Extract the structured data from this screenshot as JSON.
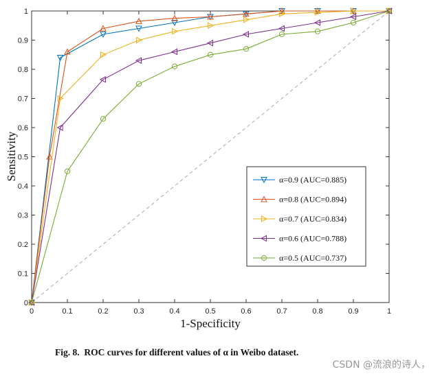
{
  "chart_data": {
    "type": "line",
    "title": "",
    "xlabel": "1-Specificity",
    "ylabel": "Sensitivity",
    "xlim": [
      0,
      1
    ],
    "ylim": [
      0,
      1
    ],
    "xticks": [
      "0",
      "0.1",
      "0.2",
      "0.3",
      "0.4",
      "0.5",
      "0.6",
      "0.7",
      "0.8",
      "0.9",
      "1"
    ],
    "yticks": [
      "0",
      "0.1",
      "0.2",
      "0.3",
      "0.4",
      "0.5",
      "0.6",
      "0.7",
      "0.8",
      "0.9",
      "1"
    ],
    "grid": false,
    "legend_position": "lower-right",
    "reference_line": {
      "name": "chance",
      "x": [
        0,
        1
      ],
      "y": [
        0,
        1
      ],
      "color": "#aaaaaa",
      "style": "dashed"
    },
    "series": [
      {
        "name": "α=0.9 (AUC=0.885)",
        "marker": "triangle-down",
        "color": "#0072BD",
        "x": [
          0,
          0.08,
          0.2,
          0.3,
          0.4,
          0.5,
          0.6,
          0.7,
          0.8,
          0.9,
          1
        ],
        "y": [
          0,
          0.84,
          0.92,
          0.94,
          0.96,
          0.98,
          0.99,
          1.0,
          1.0,
          1.0,
          1.0
        ]
      },
      {
        "name": "α=0.8 (AUC=0.894)",
        "marker": "triangle-up",
        "color": "#D95319",
        "x": [
          0,
          0.05,
          0.1,
          0.2,
          0.3,
          0.4,
          0.5,
          0.6,
          0.7,
          0.8,
          0.9,
          1
        ],
        "y": [
          0,
          0.5,
          0.86,
          0.94,
          0.965,
          0.975,
          0.98,
          0.99,
          1.0,
          1.0,
          1.0,
          1.0
        ]
      },
      {
        "name": "α=0.7 (AUC=0.834)",
        "marker": "triangle-right",
        "color": "#EDB120",
        "x": [
          0,
          0.08,
          0.2,
          0.3,
          0.4,
          0.5,
          0.6,
          0.7,
          0.8,
          0.9,
          1
        ],
        "y": [
          0,
          0.7,
          0.85,
          0.9,
          0.93,
          0.95,
          0.97,
          0.99,
          0.995,
          1.0,
          1.0
        ]
      },
      {
        "name": "α=0.6 (AUC=0.788)",
        "marker": "triangle-left",
        "color": "#7E2F8E",
        "x": [
          0,
          0.08,
          0.2,
          0.3,
          0.4,
          0.5,
          0.6,
          0.7,
          0.8,
          0.9,
          1
        ],
        "y": [
          0,
          0.6,
          0.765,
          0.83,
          0.86,
          0.89,
          0.92,
          0.94,
          0.96,
          0.98,
          1.0
        ]
      },
      {
        "name": "α=0.5 (AUC=0.737)",
        "marker": "circle",
        "color": "#77AC30",
        "x": [
          0,
          0.1,
          0.2,
          0.3,
          0.4,
          0.5,
          0.6,
          0.7,
          0.8,
          0.9,
          1
        ],
        "y": [
          0,
          0.45,
          0.63,
          0.75,
          0.81,
          0.85,
          0.87,
          0.92,
          0.93,
          0.96,
          1.0
        ]
      }
    ]
  },
  "caption": {
    "label": "Fig. 8.",
    "title": "ROC curves for different values of α in Weibo dataset."
  },
  "watermark": "CSDN @流浪的诗人，"
}
